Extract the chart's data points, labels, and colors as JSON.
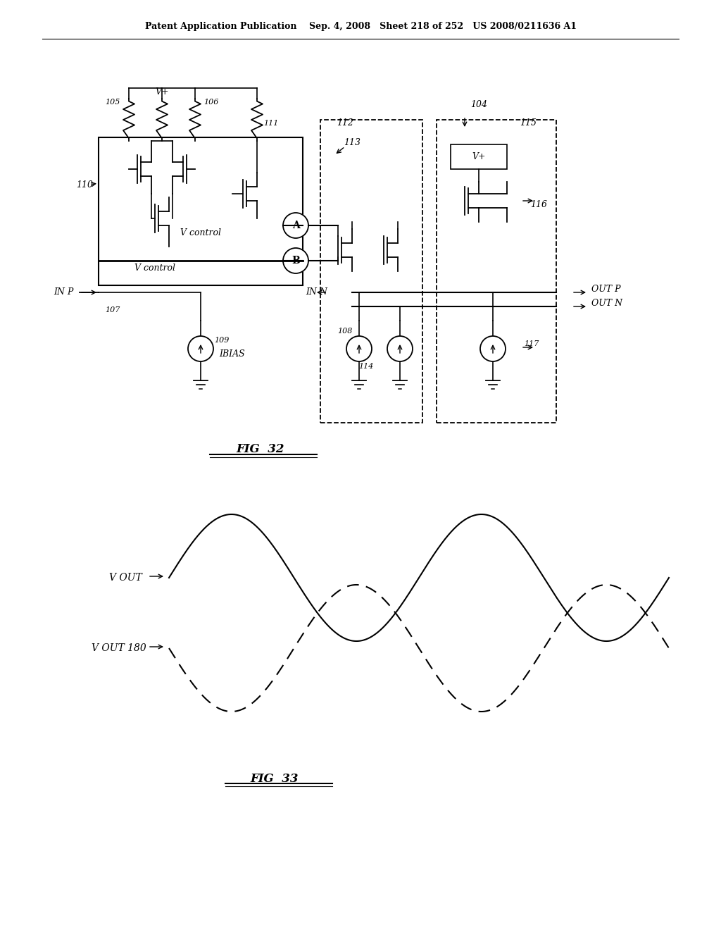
{
  "bg_color": "#ffffff",
  "line_color": "#000000",
  "header_text": "Patent Application Publication    Sep. 4, 2008   Sheet 218 of 252   US 2008/0211636 A1",
  "fig32_label": "FIG 32",
  "fig33_label": "FIG 33",
  "wave_label1": "V OUT",
  "wave_label2": "V OUT 180",
  "font_size_header": 9,
  "font_size_labels": 9,
  "font_size_numbers": 8
}
